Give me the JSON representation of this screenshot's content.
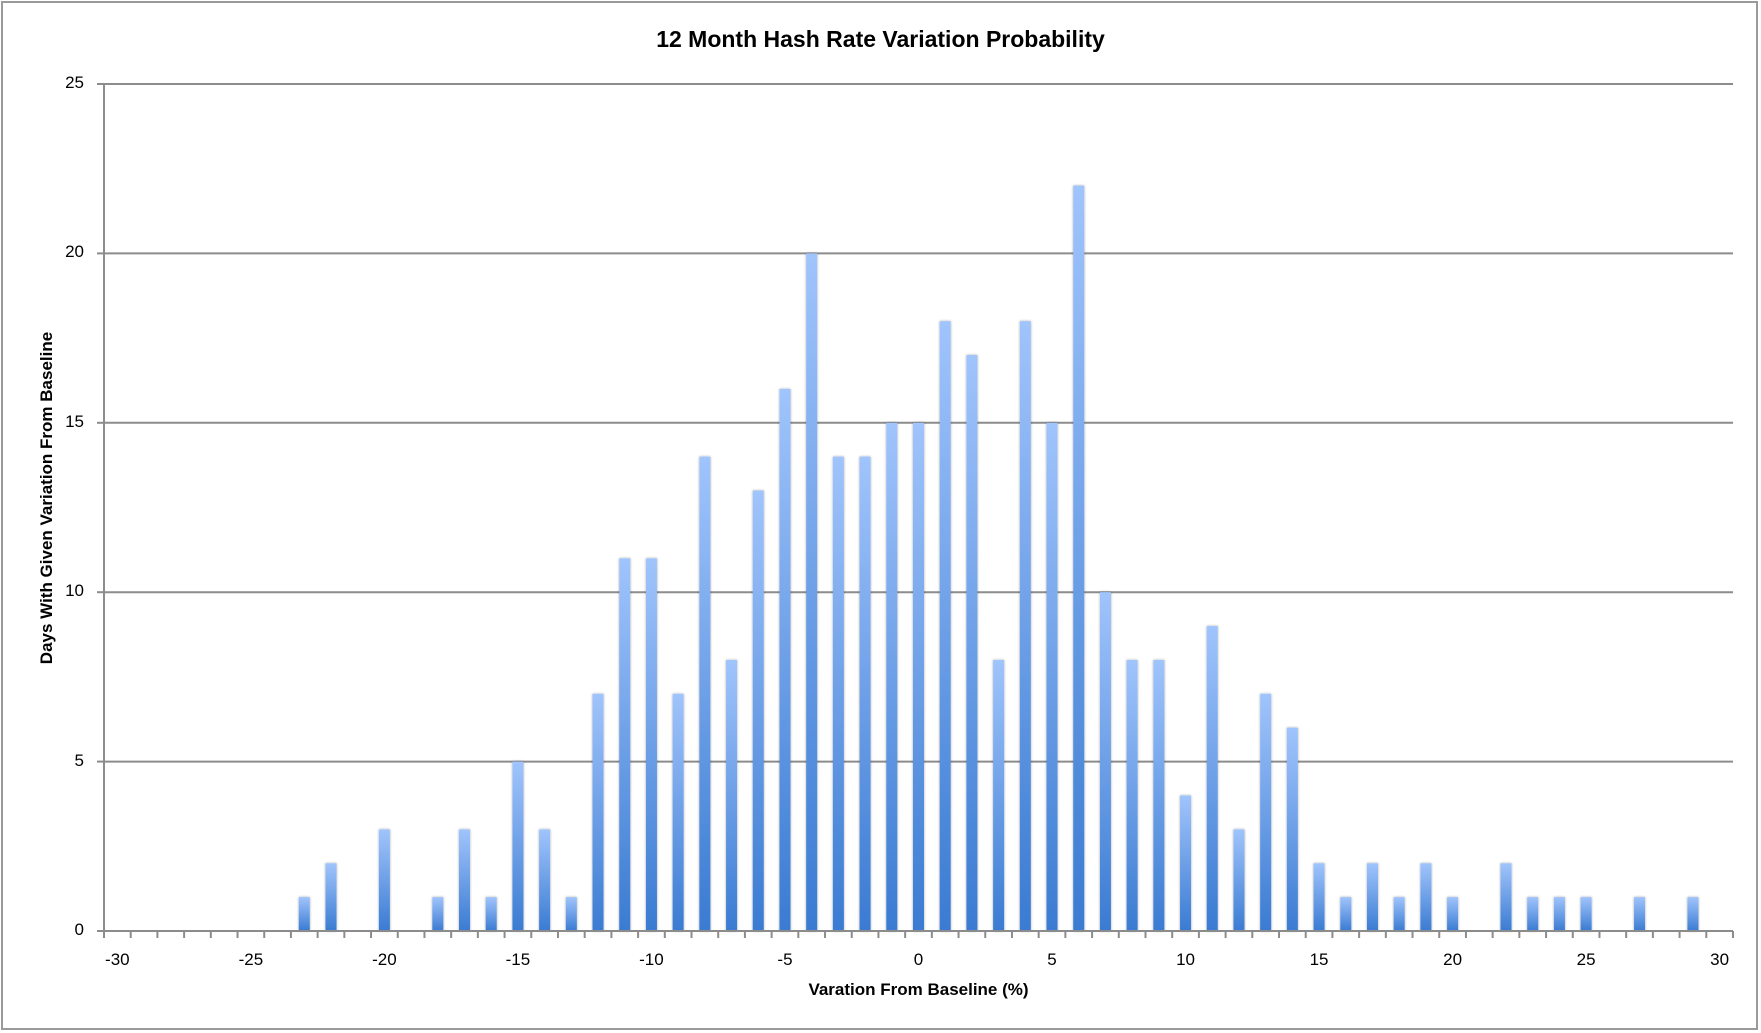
{
  "chart_data": {
    "type": "bar",
    "title": "12 Month Hash Rate Variation Probability",
    "xlabel": "Varation From Baseline (%)",
    "ylabel": "Days With Given Variation From Baseline",
    "ylim": [
      0,
      25
    ],
    "y_ticks": [
      0,
      5,
      10,
      15,
      20,
      25
    ],
    "x_tick_labels": [
      -30,
      -25,
      -20,
      -15,
      -10,
      -5,
      0,
      5,
      10,
      15,
      20,
      25,
      30
    ],
    "grid": {
      "horizontal": true,
      "vertical": false
    },
    "legend": null,
    "categories": [
      -30,
      -29,
      -28,
      -27,
      -26,
      -25,
      -24,
      -23,
      -22,
      -21,
      -20,
      -19,
      -18,
      -17,
      -16,
      -15,
      -14,
      -13,
      -12,
      -11,
      -10,
      -9,
      -8,
      -7,
      -6,
      -5,
      -4,
      -3,
      -2,
      -1,
      0,
      1,
      2,
      3,
      4,
      5,
      6,
      7,
      8,
      9,
      10,
      11,
      12,
      13,
      14,
      15,
      16,
      17,
      18,
      19,
      20,
      21,
      22,
      23,
      24,
      25,
      26,
      27,
      28,
      29,
      30
    ],
    "values": [
      0,
      0,
      0,
      0,
      0,
      0,
      0,
      1,
      2,
      0,
      3,
      0,
      1,
      3,
      1,
      5,
      3,
      1,
      7,
      11,
      11,
      7,
      14,
      8,
      13,
      16,
      20,
      14,
      14,
      15,
      15,
      18,
      17,
      8,
      18,
      15,
      22,
      10,
      8,
      8,
      4,
      9,
      3,
      7,
      6,
      2,
      1,
      2,
      1,
      2,
      1,
      0,
      2,
      1,
      1,
      1,
      0,
      1,
      0,
      1,
      0
    ],
    "colors": {
      "bar_top": "#a0c4fc",
      "bar_bottom": "#3a7bd2",
      "grid": "#8c8c8c",
      "axis": "#8c8c8c",
      "frame": "#9a9a9a"
    }
  }
}
